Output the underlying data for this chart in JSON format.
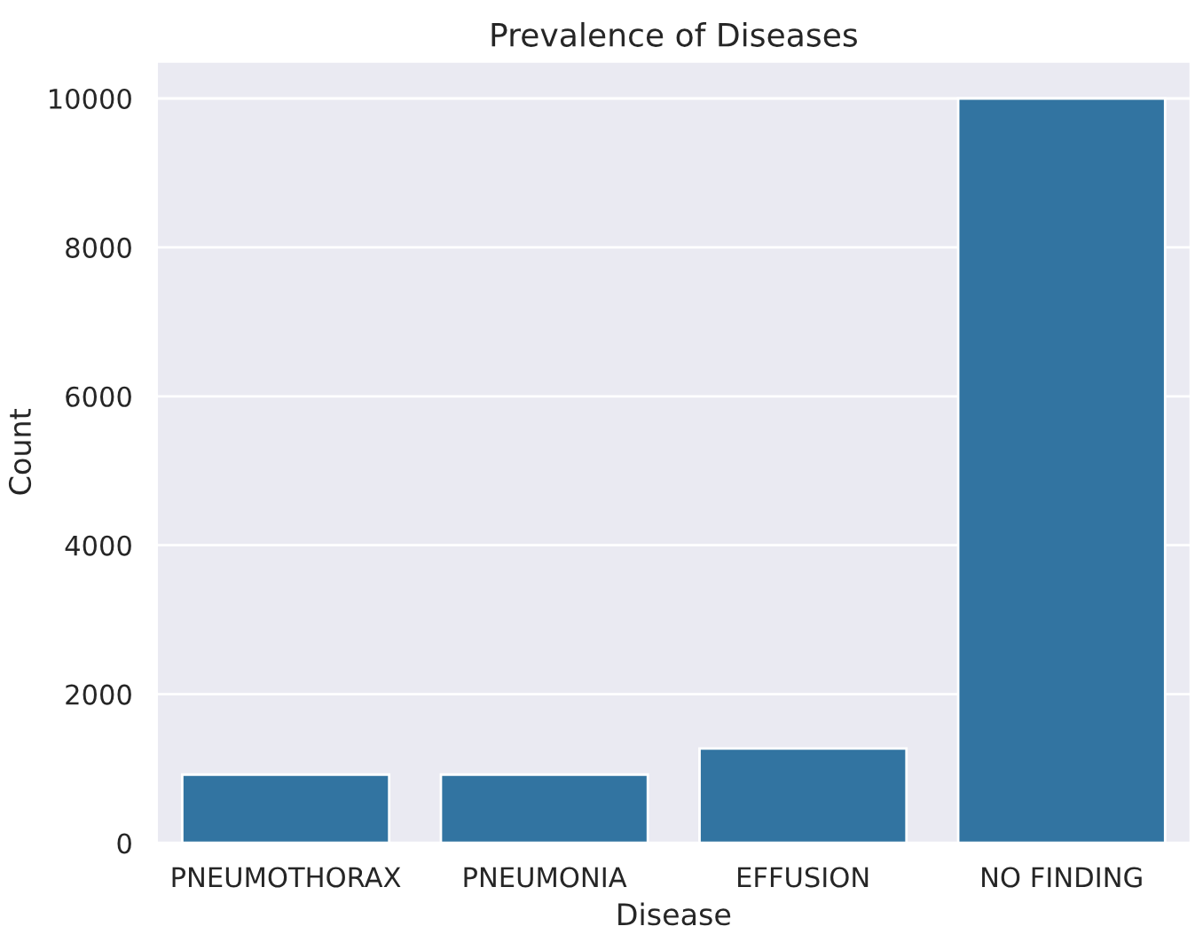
{
  "chart_data": {
    "type": "bar",
    "title": "Prevalence of Diseases",
    "xlabel": "Disease",
    "ylabel": "Count",
    "categories": [
      "PNEUMOTHORAX",
      "PNEUMONIA",
      "EFFUSION",
      "NO FINDING"
    ],
    "values": [
      920,
      920,
      1270,
      10000
    ],
    "color": "#3274a1",
    "ylim": [
      0,
      10500
    ],
    "yticks": [
      0,
      2000,
      4000,
      6000,
      8000,
      10000
    ],
    "grid": "y"
  }
}
